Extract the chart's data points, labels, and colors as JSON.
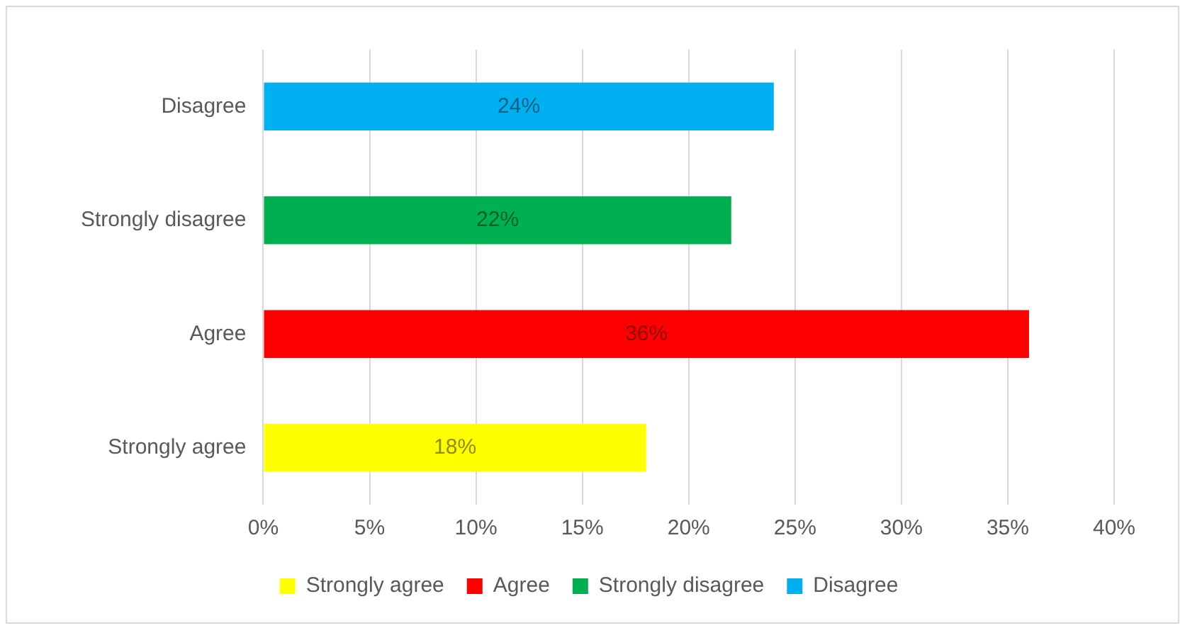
{
  "chart_data": {
    "type": "bar",
    "orientation": "horizontal",
    "categories": [
      "Disagree",
      "Strongly disagree",
      "Agree",
      "Strongly agree"
    ],
    "series": [
      {
        "name": "Strongly agree",
        "color": "#ffff00",
        "values": [
          null,
          null,
          null,
          18
        ],
        "value_labels": [
          null,
          null,
          null,
          "18%"
        ]
      },
      {
        "name": "Agree",
        "color": "#ff0000",
        "values": [
          null,
          null,
          36,
          null
        ],
        "value_labels": [
          null,
          null,
          "36%",
          null
        ]
      },
      {
        "name": "Strongly disagree",
        "color": "#00b050",
        "values": [
          null,
          22,
          null,
          null
        ],
        "value_labels": [
          null,
          "22%",
          null,
          null
        ]
      },
      {
        "name": "Disagree",
        "color": "#00b0f0",
        "values": [
          24,
          null,
          null,
          null
        ],
        "value_labels": [
          "24%",
          null,
          null,
          null
        ]
      }
    ],
    "xlim": [
      0,
      40
    ],
    "xticks": [
      {
        "value": 0,
        "label": "0%"
      },
      {
        "value": 5,
        "label": "5%"
      },
      {
        "value": 10,
        "label": "10%"
      },
      {
        "value": 15,
        "label": "15%"
      },
      {
        "value": 20,
        "label": "20%"
      },
      {
        "value": 25,
        "label": "25%"
      },
      {
        "value": 30,
        "label": "30%"
      },
      {
        "value": 35,
        "label": "35%"
      },
      {
        "value": 40,
        "label": "40%"
      }
    ],
    "grid": "x",
    "legend": "bottom"
  }
}
